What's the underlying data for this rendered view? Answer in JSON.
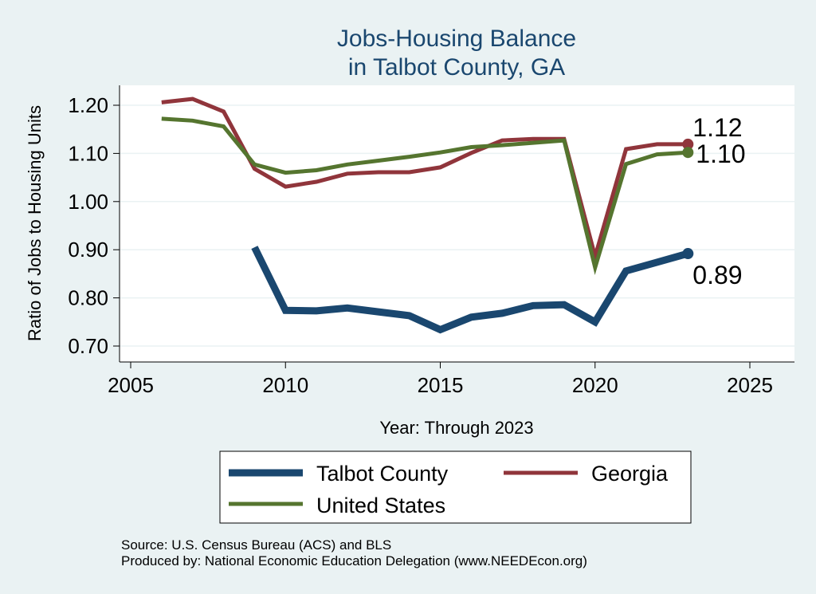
{
  "chart_data": {
    "type": "line",
    "title": [
      "Jobs-Housing Balance",
      "in Talbot County, GA"
    ],
    "xlabel": "Year: Through 2023",
    "ylabel": "Ratio of Jobs to Housing Units",
    "xlim": [
      2005,
      2027
    ],
    "ylim": [
      0.68,
      1.24
    ],
    "xticks": [
      2005,
      2010,
      2015,
      2020,
      2025
    ],
    "yticks": [
      0.7,
      0.8,
      0.9,
      1.0,
      1.1,
      1.2
    ],
    "ytick_labels": [
      "0.70",
      "0.80",
      "0.90",
      "1.00",
      "1.10",
      "1.20"
    ],
    "grid": true,
    "legend_position": "bottom",
    "series": [
      {
        "name": "Talbot County",
        "color": "#1a476f",
        "x": [
          2009,
          2010,
          2011,
          2012,
          2013,
          2014,
          2015,
          2016,
          2017,
          2018,
          2019,
          2020,
          2021,
          2022,
          2023
        ],
        "y": [
          0.905,
          0.774,
          0.773,
          0.779,
          0.771,
          0.763,
          0.734,
          0.76,
          0.768,
          0.784,
          0.786,
          0.75,
          0.856,
          0.874,
          0.892
        ],
        "end_label": "0.89"
      },
      {
        "name": "Georgia",
        "color": "#90353b",
        "x": [
          2006,
          2007,
          2008,
          2009,
          2010,
          2011,
          2012,
          2013,
          2014,
          2015,
          2016,
          2017,
          2018,
          2019,
          2020,
          2021,
          2022,
          2023
        ],
        "y": [
          1.206,
          1.213,
          1.187,
          1.068,
          1.031,
          1.041,
          1.058,
          1.061,
          1.061,
          1.071,
          1.101,
          1.127,
          1.13,
          1.13,
          0.886,
          1.109,
          1.119,
          1.119
        ],
        "end_label": "1.12"
      },
      {
        "name": "United States",
        "color": "#55752f",
        "x": [
          2006,
          2007,
          2008,
          2009,
          2010,
          2011,
          2012,
          2013,
          2014,
          2015,
          2016,
          2017,
          2018,
          2019,
          2020,
          2021,
          2022,
          2023
        ],
        "y": [
          1.172,
          1.168,
          1.156,
          1.077,
          1.06,
          1.065,
          1.077,
          1.085,
          1.093,
          1.102,
          1.113,
          1.117,
          1.122,
          1.127,
          0.863,
          1.078,
          1.098,
          1.102
        ],
        "end_label": "1.10"
      }
    ],
    "source": [
      "Source: U.S. Census Bureau (ACS) and BLS",
      "Produced by: National Economic Education Delegation (www.NEEDEcon.org)"
    ]
  }
}
